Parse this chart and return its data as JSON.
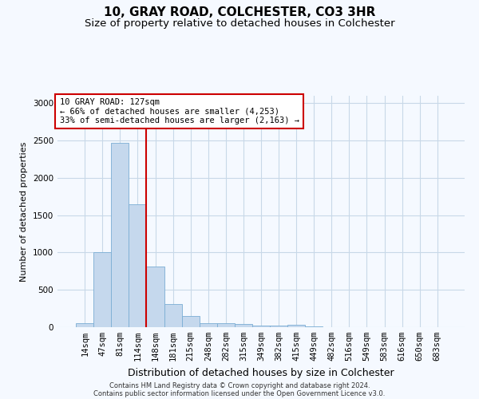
{
  "title1": "10, GRAY ROAD, COLCHESTER, CO3 3HR",
  "title2": "Size of property relative to detached houses in Colchester",
  "xlabel": "Distribution of detached houses by size in Colchester",
  "ylabel": "Number of detached properties",
  "bar_labels": [
    "14sqm",
    "47sqm",
    "81sqm",
    "114sqm",
    "148sqm",
    "181sqm",
    "215sqm",
    "248sqm",
    "282sqm",
    "315sqm",
    "349sqm",
    "382sqm",
    "415sqm",
    "449sqm",
    "482sqm",
    "516sqm",
    "549sqm",
    "583sqm",
    "616sqm",
    "650sqm",
    "683sqm"
  ],
  "bar_values": [
    55,
    1000,
    2470,
    1650,
    810,
    305,
    148,
    58,
    55,
    48,
    25,
    20,
    30,
    10,
    0,
    0,
    0,
    0,
    0,
    0,
    0
  ],
  "bar_color": "#c5d8ed",
  "bar_edge_color": "#7aadd4",
  "annotation_box_text": "10 GRAY ROAD: 127sqm\n← 66% of detached houses are smaller (4,253)\n33% of semi-detached houses are larger (2,163) →",
  "annotation_box_color": "#cc0000",
  "vline_x": 3.5,
  "vline_color": "#cc0000",
  "grid_color": "#c8d8e8",
  "background_color": "#f5f9ff",
  "ylim": [
    0,
    3100
  ],
  "yticks": [
    0,
    500,
    1000,
    1500,
    2000,
    2500,
    3000
  ],
  "footer1": "Contains HM Land Registry data © Crown copyright and database right 2024.",
  "footer2": "Contains public sector information licensed under the Open Government Licence v3.0.",
  "title1_fontsize": 11,
  "title2_fontsize": 9.5,
  "xlabel_fontsize": 9,
  "ylabel_fontsize": 8,
  "tick_fontsize": 7.5,
  "annot_fontsize": 7.5,
  "footer_fontsize": 6
}
